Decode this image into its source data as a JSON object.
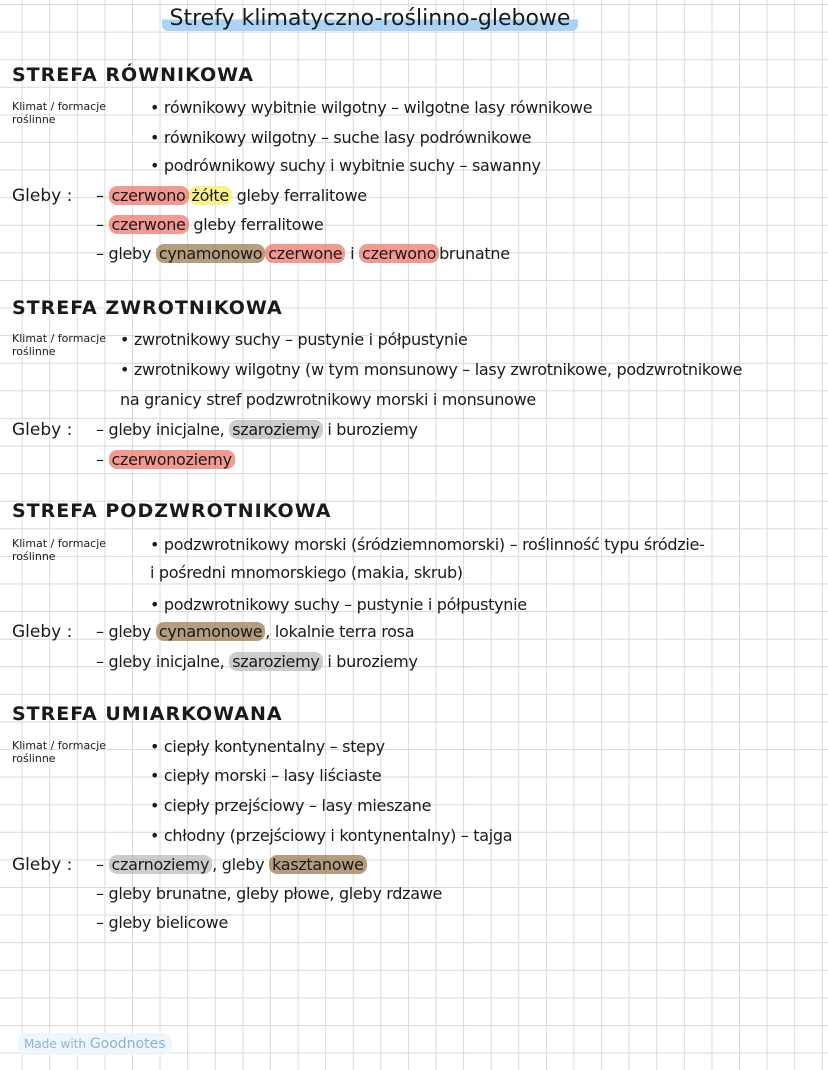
{
  "title": "Strefy klimatyczno-roślinno-glebowe",
  "labels": {
    "climate": "Klimat / formacje roślinne",
    "soils": "Gleby :"
  },
  "sections": [
    {
      "heading": "STREFA RÓWNIKOWA",
      "climate": [
        "• równikowy wybitnie wilgotny – wilgotne lasy równikowe",
        "• równikowy wilgotny – suche lasy podrównikowe",
        "• podrównikowy suchy i wybitnie suchy – sawanny"
      ],
      "soils": [
        [
          "– ",
          {
            "text": "czerwono",
            "hl": "red"
          },
          {
            "text": "żółte",
            "hl": "yel"
          },
          " gleby ferralitowe"
        ],
        [
          "– ",
          {
            "text": "czerwone",
            "hl": "red"
          },
          " gleby ferralitowe"
        ],
        [
          "– gleby ",
          {
            "text": "cynamonowo",
            "hl": "brn"
          },
          {
            "text": "czerwone",
            "hl": "red"
          },
          " i ",
          {
            "text": "czerwono",
            "hl": "red"
          },
          "brunatne"
        ]
      ]
    },
    {
      "heading": "STREFA ZWROTNIKOWA",
      "climate": [
        "• zwrotnikowy suchy – pustynie i półpustynie",
        "• zwrotnikowy wilgotny (w tym monsunowy  –  lasy zwrotnikowe, podzwrotnikowe",
        "   na granicy stref podzwrotnikowy morski                 i monsunowe"
      ],
      "soils": [
        [
          "– gleby inicjalne, ",
          {
            "text": "szaroziemy",
            "hl": "gry"
          },
          " i buroziemy"
        ],
        [
          "– ",
          {
            "text": "czerwonoziemy",
            "hl": "red"
          }
        ]
      ]
    },
    {
      "heading": "STREFA PODZWROTNIKOWA",
      "climate": [
        "• podzwrotnikowy morski (śródziemnomorski) – roślinność typu śródzie-",
        "   i pośredni                                                             mnomorskiego (makia, skrub)",
        "• podzwrotnikowy suchy – pustynie i półpustynie"
      ],
      "soils": [
        [
          "– gleby ",
          {
            "text": "cynamonowe",
            "hl": "brn"
          },
          ", lokalnie terra rosa"
        ],
        [
          "– gleby inicjalne, ",
          {
            "text": "szaroziemy",
            "hl": "gry"
          },
          " i buroziemy"
        ]
      ]
    },
    {
      "heading": "STREFA UMIARKOWANA",
      "climate": [
        "• ciepły kontynentalny – stepy",
        "• ciepły morski – lasy liściaste",
        "• ciepły przejściowy – lasy mieszane",
        "• chłodny (przejściowy i kontynentalny) – tajga"
      ],
      "soils": [
        [
          "– ",
          {
            "text": "czarnoziemy",
            "hl": "gry"
          },
          ", gleby ",
          {
            "text": "kasztanowe",
            "hl": "brn"
          }
        ],
        [
          "– gleby brunatne, gleby płowe, gleby rdzawe"
        ],
        [
          "– gleby bielicowe"
        ]
      ]
    }
  ],
  "badge": {
    "prefix": "Made with",
    "brand": "Goodnotes"
  }
}
